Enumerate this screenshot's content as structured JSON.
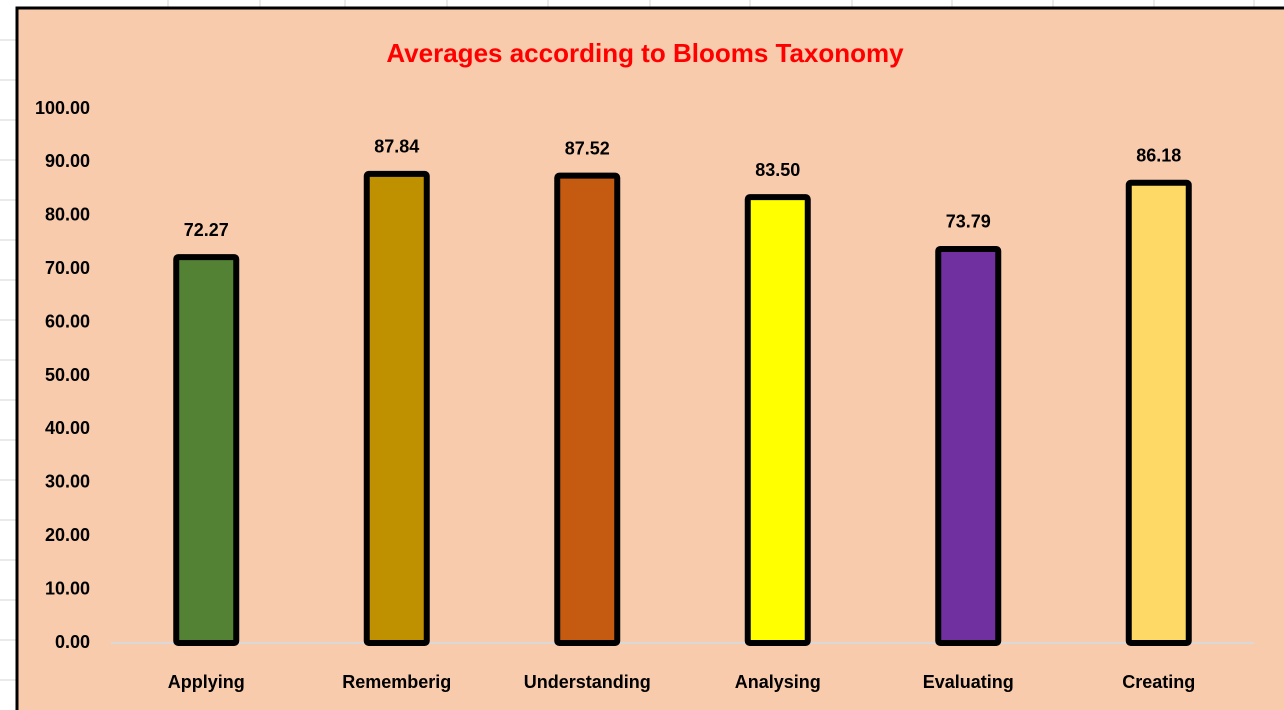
{
  "chart_data": {
    "type": "bar",
    "title": "Averages according to Blooms Taxonomy",
    "categories": [
      "Applying",
      "Rememberig",
      "Understanding",
      "Analysing",
      "Evaluating",
      "Creating"
    ],
    "values": [
      72.27,
      87.84,
      87.52,
      83.5,
      73.79,
      86.18
    ],
    "value_labels": [
      "72.27",
      "87.84",
      "87.52",
      "83.50",
      "73.79",
      "86.18"
    ],
    "colors": [
      "#548235",
      "#bf9000",
      "#c55a11",
      "#ffff00",
      "#7030a0",
      "#ffd966"
    ],
    "ylim": [
      0,
      100
    ],
    "yticks": [
      {
        "value": 0,
        "label": "0.00"
      },
      {
        "value": 10,
        "label": "10.00"
      },
      {
        "value": 20,
        "label": "20.00"
      },
      {
        "value": 30,
        "label": "30.00"
      },
      {
        "value": 40,
        "label": "40.00"
      },
      {
        "value": 50,
        "label": "50.00"
      },
      {
        "value": 60,
        "label": "60.00"
      },
      {
        "value": 70,
        "label": "70.00"
      },
      {
        "value": 80,
        "label": "80.00"
      },
      {
        "value": 90,
        "label": "90.00"
      },
      {
        "value": 100,
        "label": "100.00"
      }
    ],
    "grid": false
  }
}
